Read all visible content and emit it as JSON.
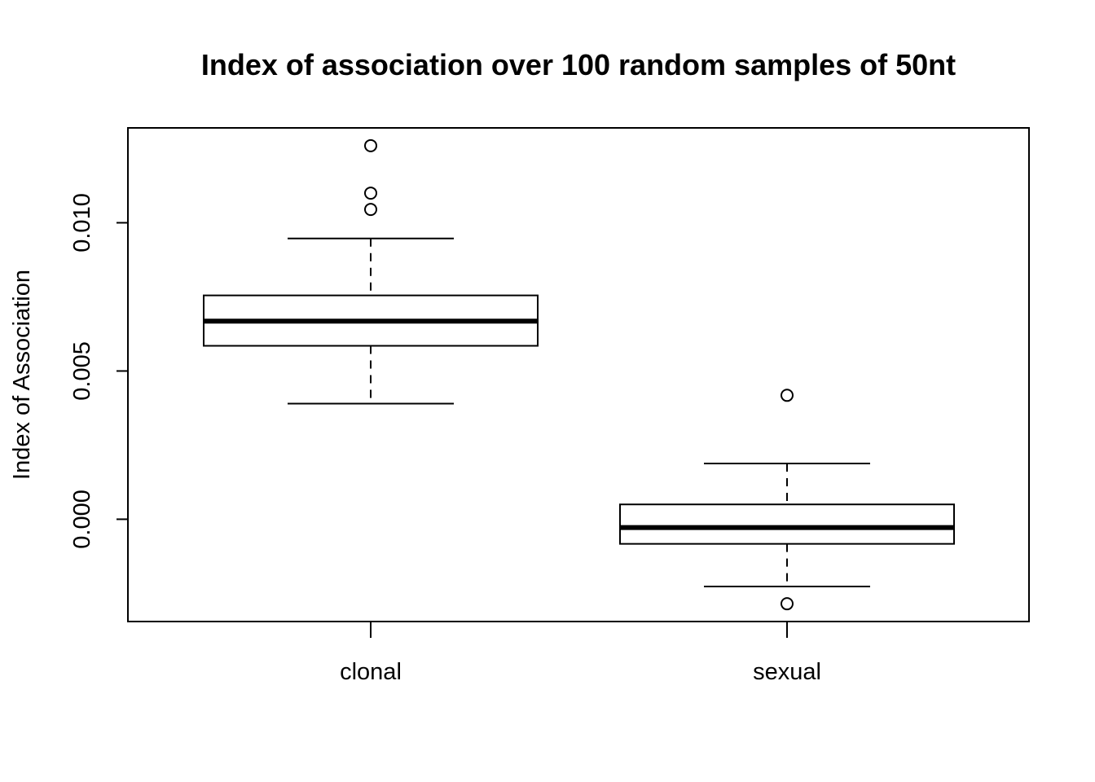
{
  "chart_data": {
    "type": "boxplot",
    "title": "Index of association over 100 random samples of 50nt",
    "xlabel": "",
    "ylabel": "Index of Association",
    "categories": [
      "clonal",
      "sexual"
    ],
    "boxes": [
      {
        "category": "clonal",
        "whisker_low": 0.0039,
        "q1": 0.00585,
        "median": 0.00668,
        "q3": 0.00755,
        "whisker_high": 0.00947,
        "outliers": [
          0.0126,
          0.011,
          0.01045
        ]
      },
      {
        "category": "sexual",
        "whisker_low": -0.00227,
        "q1": -0.00083,
        "median": -0.00028,
        "q3": 0.0005,
        "whisker_high": 0.00188,
        "outliers": [
          0.00418,
          -0.00285
        ]
      }
    ],
    "yticks": [
      0.0,
      0.005,
      0.01
    ],
    "ytick_labels": [
      "0.000",
      "0.005",
      "0.010"
    ],
    "ylim": [
      -0.00345,
      0.0132
    ],
    "grid": false,
    "legend": "none"
  }
}
